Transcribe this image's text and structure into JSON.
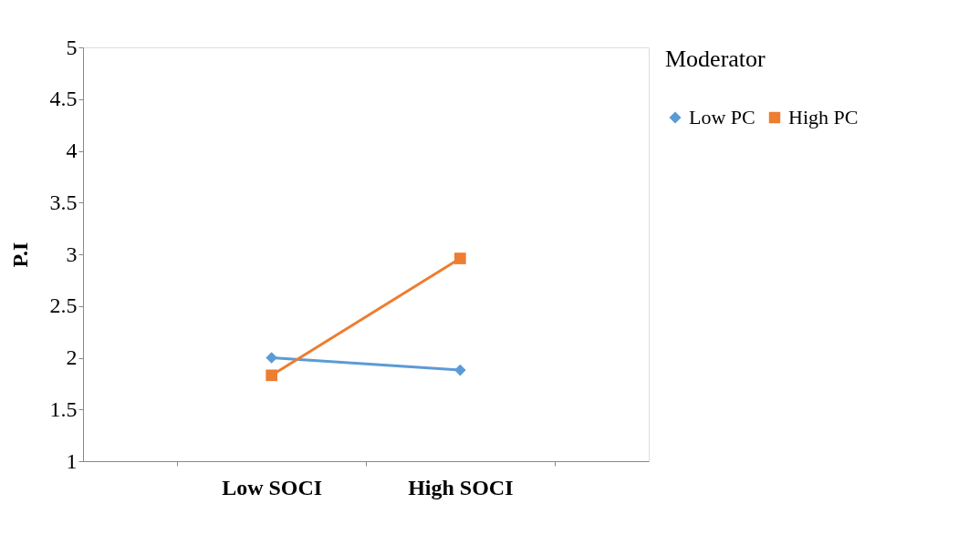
{
  "chart_data": {
    "type": "line",
    "ylabel": "P.I",
    "legend_title": "Moderator",
    "categories": [
      "Low SOCI",
      "High SOCI"
    ],
    "series": [
      {
        "name": "Low PC",
        "color": "#5b9bd5",
        "marker": "diamond",
        "values": [
          2.0,
          1.88
        ]
      },
      {
        "name": "High PC",
        "color": "#ed7d31",
        "marker": "square",
        "values": [
          1.83,
          2.96
        ]
      }
    ],
    "ylim": [
      1,
      5
    ],
    "yticks": [
      1,
      1.5,
      2,
      2.5,
      3,
      3.5,
      4,
      4.5,
      5
    ],
    "grid": false,
    "legend": "right"
  }
}
